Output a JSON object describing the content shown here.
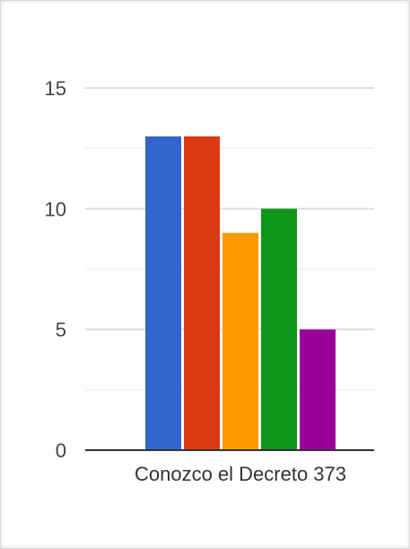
{
  "chart_data": {
    "type": "bar",
    "categories": [
      "Conozco el Decreto 373"
    ],
    "series": [
      {
        "values": [
          13
        ],
        "color": "#3366cc"
      },
      {
        "values": [
          13
        ],
        "color": "#dc3912"
      },
      {
        "values": [
          9
        ],
        "color": "#ff9900"
      },
      {
        "values": [
          10
        ],
        "color": "#109618"
      },
      {
        "values": [
          5
        ],
        "color": "#990099"
      }
    ],
    "ylim": [
      0,
      15
    ],
    "yticks": [
      0,
      5,
      10,
      15
    ],
    "ytick_labels": [
      "0",
      "5",
      "10",
      "15"
    ],
    "minor_gridlines": true,
    "grid": true,
    "legend": "none"
  }
}
